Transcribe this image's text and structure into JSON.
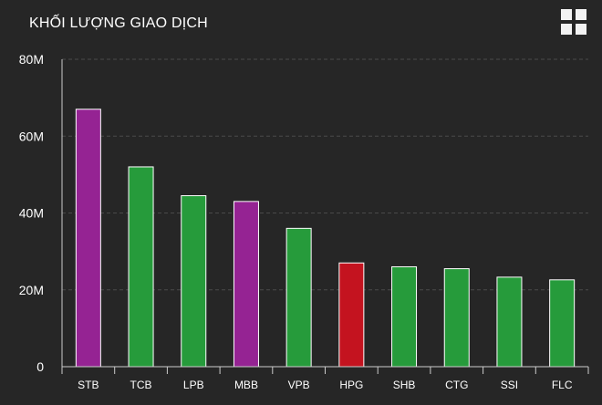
{
  "header": {
    "title": "KHỐI LƯỢNG GIAO DỊCH",
    "menu_icon": "grid-menu-icon"
  },
  "chart_data": {
    "type": "bar",
    "title": "KHỐI LƯỢNG GIAO DỊCH",
    "categories": [
      "STB",
      "TCB",
      "LPB",
      "MBB",
      "VPB",
      "HPG",
      "SHB",
      "CTG",
      "SSI",
      "FLC"
    ],
    "values": [
      67,
      52,
      44.5,
      43,
      36,
      27,
      26,
      25.5,
      23.3,
      22.6
    ],
    "colors": [
      "#952393",
      "#269b3b",
      "#269b3b",
      "#952393",
      "#269b3b",
      "#c4131f",
      "#269b3b",
      "#269b3b",
      "#269b3b",
      "#269b3b"
    ],
    "ylim": [
      0,
      80
    ],
    "yticks": [
      0,
      20,
      40,
      60,
      80
    ],
    "ytick_labels": [
      "0",
      "20M",
      "40M",
      "60M",
      "80M"
    ],
    "xlabel": "",
    "ylabel": "",
    "grid": true,
    "legend": false
  }
}
